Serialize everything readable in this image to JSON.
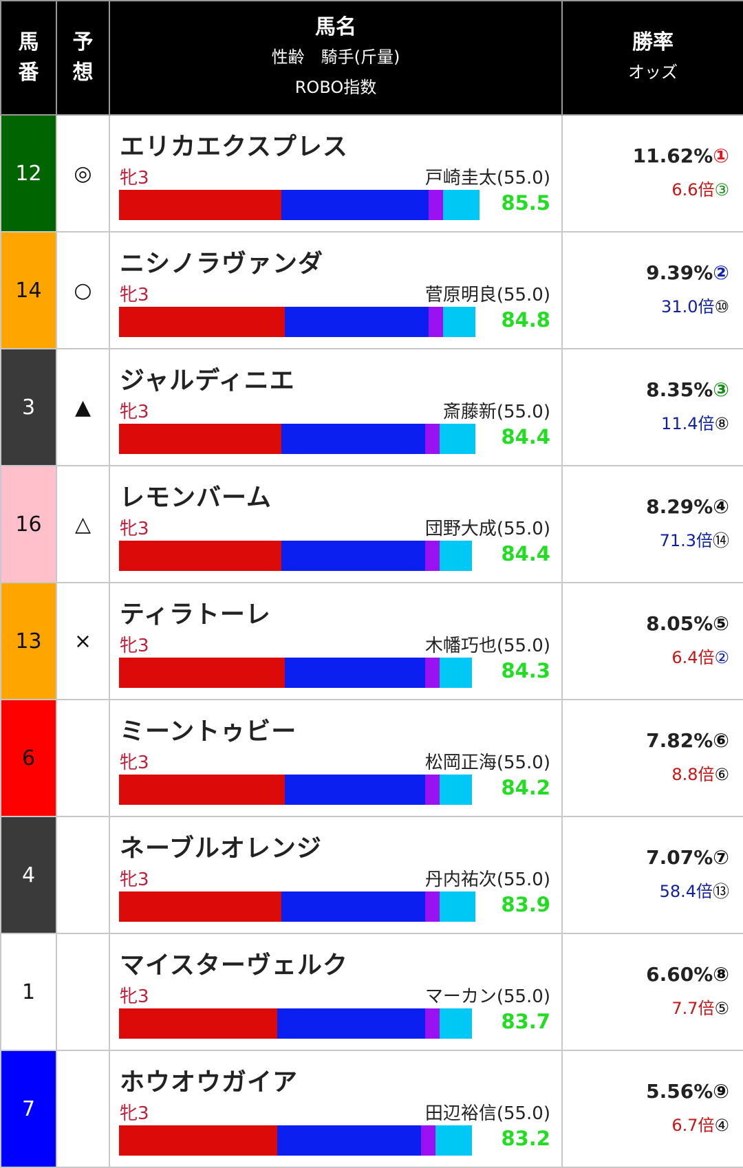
{
  "header": {
    "num": [
      "馬",
      "番"
    ],
    "mark": [
      "予",
      "想"
    ],
    "name_title": "馬名",
    "name_sub1": "性齢　騎手(斤量)",
    "name_sub2": "ROBO指数",
    "rate_title": "勝率",
    "rate_sub": "オッズ"
  },
  "colors": {
    "bar": [
      "#dd0a0a",
      "#0a1ff0",
      "#9b12f2",
      "#00c8f5"
    ],
    "rank_red": "#e0141e",
    "rank_blue": "#1020b0",
    "rank_green": "#148c14",
    "rank_black": "#111111",
    "odds_red": "#c81414",
    "odds_blue": "#1020a0",
    "score": "#22dd22"
  },
  "rows": [
    {
      "num": "12",
      "num_bg": "#006400",
      "num_fg": "#ffffff",
      "mark": "◎",
      "name": "エリカエクスプレス",
      "sex": "牝3",
      "jockey": "戸崎圭太(55.0)",
      "segs": [
        236,
        214,
        21,
        53
      ],
      "score": "85.5",
      "rate": "11.62%",
      "rank": "①",
      "rank_color": "#e0141e",
      "odds": "6.6倍",
      "odds_color": "#c81414",
      "odds_rank": "③",
      "odds_rank_color": "#148c14"
    },
    {
      "num": "14",
      "num_bg": "#ffa500",
      "num_fg": "#111111",
      "mark": "○",
      "name": "ニシノラヴァンダ",
      "sex": "牝3",
      "jockey": "菅原明良(55.0)",
      "segs": [
        241,
        209,
        21,
        47
      ],
      "score": "84.8",
      "rate": "9.39%",
      "rank": "②",
      "rank_color": "#1020b0",
      "odds": "31.0倍",
      "odds_color": "#1020a0",
      "odds_rank": "⑩",
      "odds_rank_color": "#111111"
    },
    {
      "num": "3",
      "num_bg": "#3a3a3a",
      "num_fg": "#ffffff",
      "mark": "▲",
      "name": "ジャルディニエ",
      "sex": "牝3",
      "jockey": "斎藤新(55.0)",
      "segs": [
        236,
        209,
        21,
        52
      ],
      "score": "84.4",
      "rate": "8.35%",
      "rank": "③",
      "rank_color": "#148c14",
      "odds": "11.4倍",
      "odds_color": "#1020a0",
      "odds_rank": "⑧",
      "odds_rank_color": "#111111"
    },
    {
      "num": "16",
      "num_bg": "#ffc0cb",
      "num_fg": "#111111",
      "mark": "△",
      "name": "レモンバーム",
      "sex": "牝3",
      "jockey": "団野大成(55.0)",
      "segs": [
        236,
        209,
        21,
        47
      ],
      "score": "84.4",
      "rate": "8.29%",
      "rank": "④",
      "rank_color": "#111111",
      "odds": "71.3倍",
      "odds_color": "#1020a0",
      "odds_rank": "⑭",
      "odds_rank_color": "#111111"
    },
    {
      "num": "13",
      "num_bg": "#ffa500",
      "num_fg": "#111111",
      "mark": "×",
      "name": "ティラトーレ",
      "sex": "牝3",
      "jockey": "木幡巧也(55.0)",
      "segs": [
        241,
        204,
        21,
        47
      ],
      "score": "84.3",
      "rate": "8.05%",
      "rank": "⑤",
      "rank_color": "#111111",
      "odds": "6.4倍",
      "odds_color": "#c81414",
      "odds_rank": "②",
      "odds_rank_color": "#1020b0"
    },
    {
      "num": "6",
      "num_bg": "#ff0000",
      "num_fg": "#111111",
      "mark": "",
      "name": "ミーントゥビー",
      "sex": "牝3",
      "jockey": "松岡正海(55.0)",
      "segs": [
        241,
        204,
        21,
        47
      ],
      "score": "84.2",
      "rate": "7.82%",
      "rank": "⑥",
      "rank_color": "#111111",
      "odds": "8.8倍",
      "odds_color": "#c81414",
      "odds_rank": "⑥",
      "odds_rank_color": "#111111"
    },
    {
      "num": "4",
      "num_bg": "#3a3a3a",
      "num_fg": "#ffffff",
      "mark": "",
      "name": "ネーブルオレンジ",
      "sex": "牝3",
      "jockey": "丹内祐次(55.0)",
      "segs": [
        236,
        209,
        21,
        52
      ],
      "score": "83.9",
      "rate": "7.07%",
      "rank": "⑦",
      "rank_color": "#111111",
      "odds": "58.4倍",
      "odds_color": "#1020a0",
      "odds_rank": "⑬",
      "odds_rank_color": "#111111"
    },
    {
      "num": "1",
      "num_bg": "#ffffff",
      "num_fg": "#111111",
      "mark": "",
      "name": "マイスターヴェルク",
      "sex": "牝3",
      "jockey": "マーカン(55.0)",
      "segs": [
        230,
        215,
        21,
        47
      ],
      "score": "83.7",
      "rate": "6.60%",
      "rank": "⑧",
      "rank_color": "#111111",
      "odds": "7.7倍",
      "odds_color": "#c81414",
      "odds_rank": "⑤",
      "odds_rank_color": "#111111"
    },
    {
      "num": "7",
      "num_bg": "#0000ff",
      "num_fg": "#ffffff",
      "mark": "",
      "name": "ホウオウガイア",
      "sex": "牝3",
      "jockey": "田辺裕信(55.0)",
      "segs": [
        230,
        209,
        21,
        53
      ],
      "score": "83.2",
      "rate": "5.56%",
      "rank": "⑨",
      "rank_color": "#111111",
      "odds": "6.7倍",
      "odds_color": "#c81414",
      "odds_rank": "④",
      "odds_rank_color": "#111111"
    }
  ]
}
